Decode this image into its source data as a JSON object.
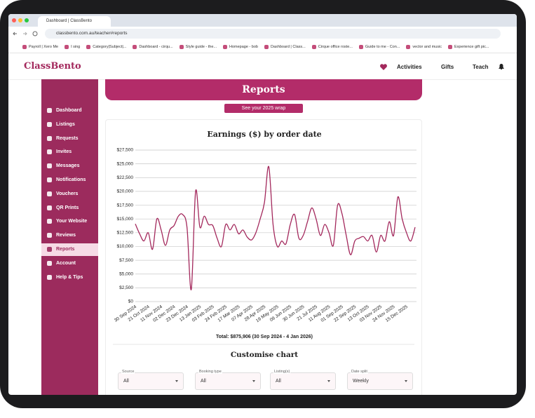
{
  "browser": {
    "tab_title": "Dashboard | ClassBento",
    "url": "classbento.com.au/teacher#reports",
    "bookmarks": [
      "Payroll | Xero Me",
      "I sing",
      "Category|Subject|...",
      "Dashboard - cirqu...",
      "Style guide - the...",
      "Homepage - bob",
      "Dashboard | Class...",
      "Cirque office roste...",
      "Guide to me - Con...",
      "vector and music",
      "Experience gift pic..."
    ]
  },
  "header": {
    "logo": "ClassBento",
    "nav": [
      "Activities",
      "Gifts",
      "Teach"
    ]
  },
  "sidebar": {
    "items": [
      "Dashboard",
      "Listings",
      "Requests",
      "Invites",
      "Messages",
      "Notifications",
      "Vouchers",
      "QR Prints",
      "Your Website",
      "Reviews",
      "Reports",
      "Account",
      "Help & Tips"
    ]
  },
  "banner": {
    "title": "Reports",
    "button": "See your 2025 wrap"
  },
  "chart_data": {
    "type": "line",
    "title": "Earnings ($) by order date",
    "categories": [
      "30 Sep 2024",
      null,
      null,
      "21 Oct 2024",
      null,
      null,
      "11 Nov 2024",
      null,
      null,
      "02 Dec 2024",
      null,
      null,
      "23 Dec 2024",
      null,
      null,
      "13 Jan 2025",
      null,
      null,
      "03 Feb 2025",
      null,
      null,
      "24 Feb 2025",
      null,
      null,
      "17 Mar 2025",
      null,
      null,
      "07 Apr 2025",
      null,
      null,
      "28 Apr 2025",
      null,
      null,
      "19 May 2025",
      null,
      null,
      "09 Jun 2025",
      null,
      null,
      "30 Jun 2025",
      null,
      null,
      "21 Jul 2025",
      null,
      null,
      "11 Aug 2025",
      null,
      null,
      "01 Sep 2025",
      null,
      null,
      "22 Sep 2025",
      null,
      null,
      "13 Oct 2025",
      null,
      null,
      "03 Nov 2025",
      null,
      null,
      "24 Nov 2025",
      null,
      null,
      "15 Dec 2025",
      null,
      null
    ],
    "values": [
      14100,
      12300,
      11000,
      12500,
      9500,
      15000,
      13000,
      10200,
      13000,
      13800,
      15500,
      15800,
      13500,
      2200,
      20000,
      13500,
      15500,
      14000,
      13800,
      11500,
      10000,
      14000,
      13000,
      14000,
      12300,
      13000,
      11700,
      11200,
      12500,
      15000,
      18000,
      24500,
      14000,
      10000,
      11000,
      10500,
      14000,
      15800,
      11500,
      12000,
      14500,
      17000,
      15000,
      12000,
      14000,
      12500,
      10200,
      17500,
      16000,
      12000,
      8500,
      11000,
      11500,
      11800,
      11000,
      12000,
      9000,
      12000,
      11000,
      14500,
      12000,
      19000,
      15000,
      12500,
      11000,
      13500
    ],
    "color": "#a3285c",
    "ylim": [
      0,
      27500
    ],
    "yticks": [
      {
        "value": 0,
        "label": "$0"
      },
      {
        "value": 2500,
        "label": "$2,500"
      },
      {
        "value": 5000,
        "label": "$5,000"
      },
      {
        "value": 7500,
        "label": "$7,500"
      },
      {
        "value": 10000,
        "label": "$10,000"
      },
      {
        "value": 12500,
        "label": "$12,500"
      },
      {
        "value": 15000,
        "label": "$15,000"
      },
      {
        "value": 17500,
        "label": "$17,500"
      },
      {
        "value": 20000,
        "label": "$20,000"
      },
      {
        "value": 22500,
        "label": "$22,500"
      },
      {
        "value": 25000,
        "label": "$25,000"
      },
      {
        "value": 27500,
        "label": "$27,500"
      }
    ],
    "grid": true,
    "total": "Total: $875,906 (30 Sep 2024 - 4 Jan 2026)"
  },
  "customise": {
    "title": "Customise chart",
    "fields": [
      {
        "label": "Source",
        "value": "All"
      },
      {
        "label": "Booking type",
        "value": "All"
      },
      {
        "label": "Listing(s)",
        "value": "All"
      },
      {
        "label": "Date split",
        "value": "Weekly"
      }
    ]
  }
}
